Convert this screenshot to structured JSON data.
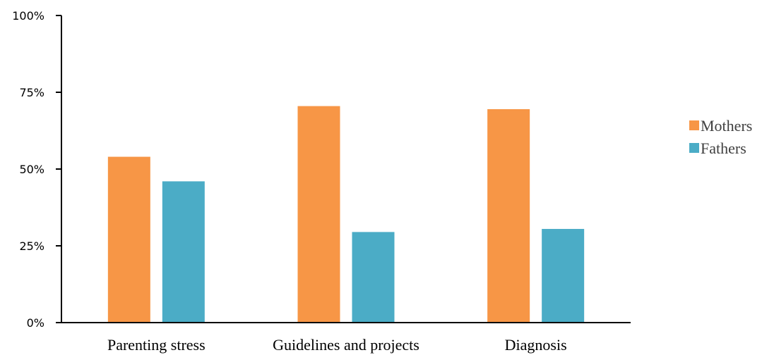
{
  "chart_data": {
    "type": "bar",
    "title": "",
    "xlabel": "",
    "ylabel": "",
    "categories": [
      "Parenting stress",
      "Guidelines and projects",
      "Diagnosis"
    ],
    "series": [
      {
        "name": "Mothers",
        "values": [
          54,
          70.5,
          69.5
        ],
        "color": "#F79646"
      },
      {
        "name": "Fathers",
        "values": [
          46,
          29.5,
          30.5
        ],
        "color": "#4BACC6"
      }
    ],
    "ylim": [
      0,
      100
    ],
    "yticks": [
      0,
      25,
      50,
      75,
      100
    ],
    "ytick_labels": [
      "0%",
      "25%",
      "50%",
      "75%",
      "100%"
    ],
    "grid": false,
    "legend_position": "right"
  }
}
